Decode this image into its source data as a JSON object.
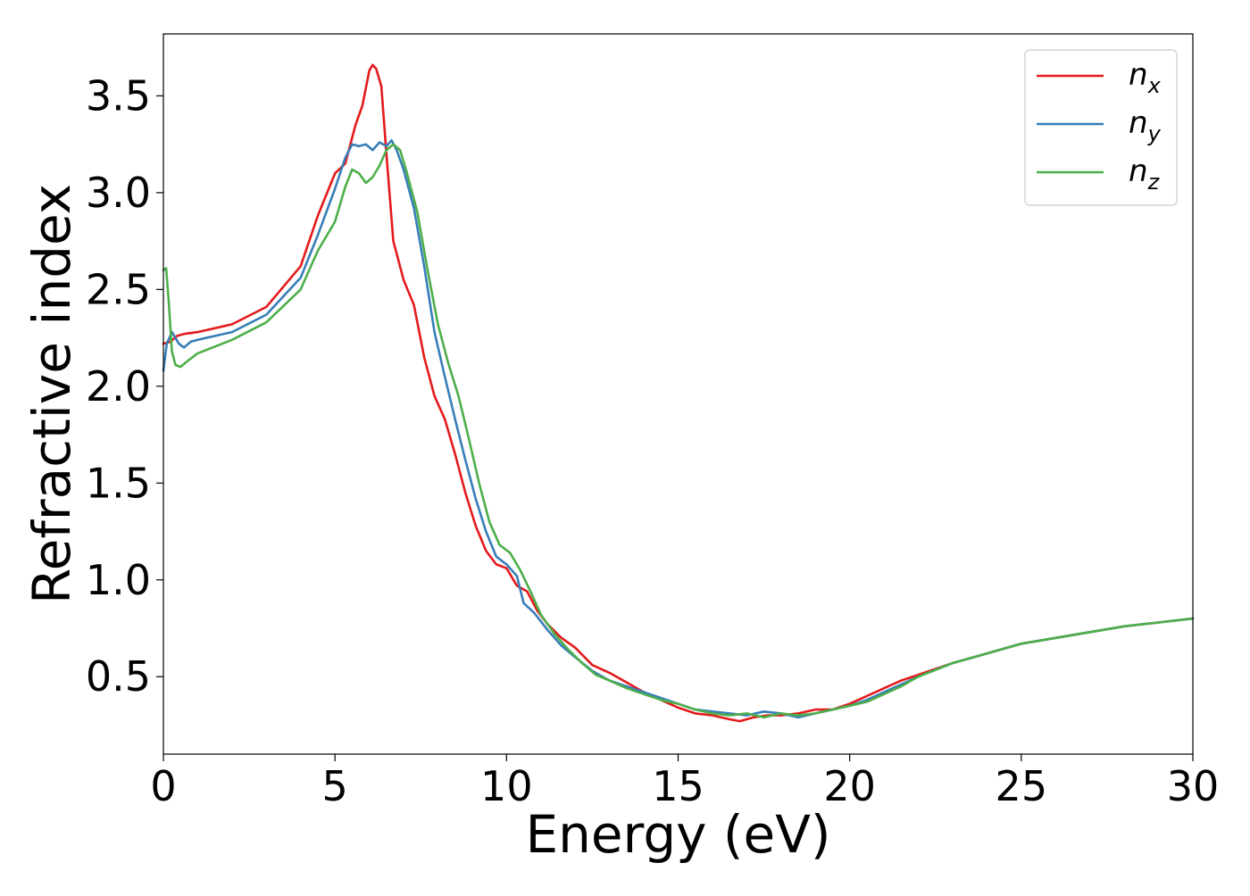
{
  "chart_data": {
    "type": "line",
    "title": "",
    "xlabel": "Energy (eV)",
    "ylabel": "Refractive index",
    "xlim": [
      0,
      30
    ],
    "ylim": [
      0.1,
      3.82
    ],
    "xticks": [
      0,
      5,
      10,
      15,
      20,
      25,
      30
    ],
    "xtick_labels": [
      "0",
      "5",
      "10",
      "15",
      "20",
      "25",
      "30"
    ],
    "yticks": [
      0.5,
      1.0,
      1.5,
      2.0,
      2.5,
      3.0,
      3.5
    ],
    "ytick_labels": [
      "0.5",
      "1.0",
      "1.5",
      "2.0",
      "2.5",
      "3.0",
      "3.5"
    ],
    "grid": false,
    "legend_position": "top-right",
    "series": [
      {
        "name": "n_x",
        "label_main": "n",
        "label_sub": "x",
        "color": "#e41a1c",
        "x": [
          0,
          0.2,
          0.4,
          0.6,
          1,
          2,
          3,
          4,
          4.5,
          5,
          5.3,
          5.6,
          5.8,
          6.0,
          6.1,
          6.2,
          6.35,
          6.5,
          6.7,
          7.0,
          7.3,
          7.6,
          7.9,
          8.2,
          8.5,
          8.8,
          9.1,
          9.4,
          9.7,
          10.0,
          10.3,
          10.6,
          10.9,
          11.2,
          11.6,
          12.0,
          12.5,
          13.0,
          13.5,
          14.0,
          14.5,
          15.0,
          15.5,
          16.0,
          16.5,
          16.8,
          17.2,
          17.6,
          18.0,
          18.5,
          19.0,
          19.5,
          20.0,
          20.5,
          21.0,
          21.5,
          22.0,
          23.0,
          24.0,
          25.0,
          26.0,
          27.0,
          28.0,
          29.0,
          30.0
        ],
        "y": [
          2.22,
          2.23,
          2.26,
          2.27,
          2.28,
          2.32,
          2.41,
          2.62,
          2.88,
          3.1,
          3.15,
          3.35,
          3.45,
          3.63,
          3.66,
          3.64,
          3.55,
          3.2,
          2.75,
          2.55,
          2.42,
          2.15,
          1.95,
          1.83,
          1.65,
          1.45,
          1.28,
          1.15,
          1.08,
          1.06,
          0.97,
          0.94,
          0.84,
          0.77,
          0.7,
          0.65,
          0.56,
          0.52,
          0.47,
          0.42,
          0.38,
          0.34,
          0.31,
          0.3,
          0.28,
          0.27,
          0.29,
          0.3,
          0.3,
          0.31,
          0.33,
          0.33,
          0.36,
          0.4,
          0.44,
          0.48,
          0.51,
          0.57,
          0.62,
          0.67,
          0.7,
          0.73,
          0.76,
          0.78,
          0.8
        ]
      },
      {
        "name": "n_y",
        "label_main": "n",
        "label_sub": "y",
        "color": "#377eb8",
        "x": [
          0,
          0.1,
          0.25,
          0.45,
          0.6,
          0.8,
          1,
          2,
          3,
          4,
          4.5,
          5,
          5.3,
          5.5,
          5.7,
          5.9,
          6.1,
          6.3,
          6.5,
          6.65,
          6.8,
          7.0,
          7.3,
          7.6,
          7.9,
          8.2,
          8.5,
          8.8,
          9.1,
          9.4,
          9.7,
          10.0,
          10.3,
          10.5,
          10.8,
          11.2,
          11.6,
          12.0,
          12.5,
          13.0,
          13.5,
          14.0,
          14.5,
          15.0,
          15.5,
          16.0,
          16.5,
          17.0,
          17.5,
          18.0,
          18.5,
          19.0,
          19.5,
          20.0,
          20.5,
          21.0,
          21.5,
          22.0,
          23.0,
          24.0,
          25.0,
          26.0,
          27.0,
          28.0,
          29.0,
          30.0
        ],
        "y": [
          2.08,
          2.22,
          2.28,
          2.22,
          2.2,
          2.23,
          2.24,
          2.28,
          2.37,
          2.56,
          2.78,
          3.02,
          3.18,
          3.25,
          3.24,
          3.25,
          3.22,
          3.26,
          3.24,
          3.27,
          3.22,
          3.12,
          2.92,
          2.62,
          2.28,
          2.05,
          1.83,
          1.62,
          1.42,
          1.25,
          1.12,
          1.08,
          1.02,
          0.88,
          0.83,
          0.74,
          0.66,
          0.6,
          0.53,
          0.48,
          0.45,
          0.42,
          0.39,
          0.36,
          0.33,
          0.32,
          0.31,
          0.3,
          0.32,
          0.31,
          0.29,
          0.31,
          0.33,
          0.35,
          0.38,
          0.42,
          0.46,
          0.5,
          0.57,
          0.62,
          0.67,
          0.7,
          0.73,
          0.76,
          0.78,
          0.8
        ]
      },
      {
        "name": "n_z",
        "label_main": "n",
        "label_sub": "z",
        "color": "#4daf4a",
        "x": [
          0,
          0.08,
          0.15,
          0.25,
          0.35,
          0.5,
          0.7,
          1,
          2,
          3,
          4,
          4.5,
          5,
          5.3,
          5.5,
          5.7,
          5.9,
          6.1,
          6.3,
          6.5,
          6.7,
          6.9,
          7.1,
          7.4,
          7.7,
          8.0,
          8.3,
          8.6,
          8.9,
          9.2,
          9.5,
          9.8,
          10.1,
          10.4,
          10.7,
          11.0,
          11.4,
          11.8,
          12.2,
          12.6,
          13.0,
          13.5,
          14.0,
          14.5,
          15.0,
          15.5,
          16.0,
          16.5,
          17.0,
          17.5,
          18.0,
          18.5,
          19.0,
          19.5,
          20.0,
          20.5,
          21.0,
          21.5,
          22.0,
          23.0,
          24.0,
          25.0,
          26.0,
          27.0,
          28.0,
          29.0,
          30.0
        ],
        "y": [
          2.6,
          2.61,
          2.45,
          2.18,
          2.11,
          2.1,
          2.13,
          2.17,
          2.24,
          2.33,
          2.5,
          2.7,
          2.85,
          3.03,
          3.12,
          3.1,
          3.05,
          3.08,
          3.14,
          3.22,
          3.25,
          3.22,
          3.1,
          2.9,
          2.6,
          2.32,
          2.12,
          1.95,
          1.73,
          1.5,
          1.3,
          1.18,
          1.14,
          1.05,
          0.94,
          0.82,
          0.72,
          0.64,
          0.57,
          0.51,
          0.48,
          0.44,
          0.41,
          0.38,
          0.36,
          0.33,
          0.31,
          0.3,
          0.31,
          0.29,
          0.31,
          0.3,
          0.31,
          0.33,
          0.35,
          0.37,
          0.41,
          0.45,
          0.5,
          0.57,
          0.62,
          0.67,
          0.7,
          0.73,
          0.76,
          0.78,
          0.8
        ]
      }
    ]
  }
}
